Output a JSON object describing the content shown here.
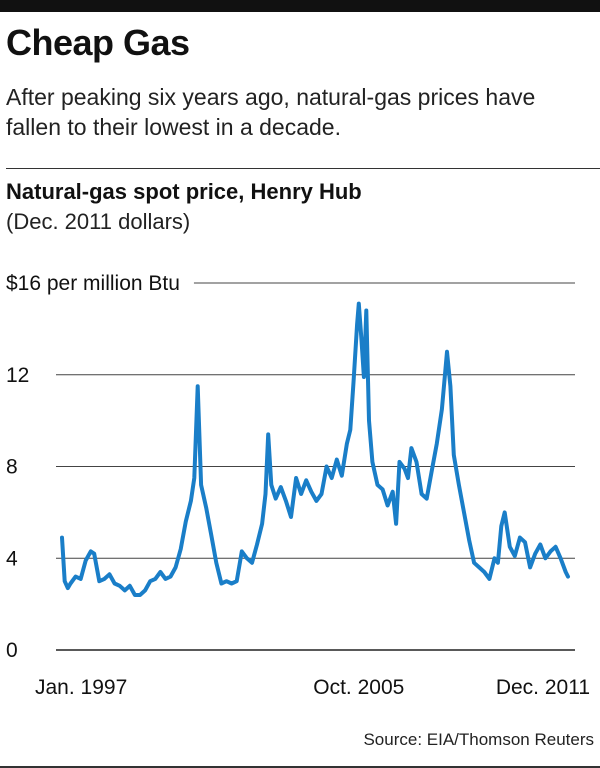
{
  "headline": "Cheap Gas",
  "dek": "After peaking six years ago, natural-gas prices have fallen to their lowest in a decade.",
  "source": "Source: EIA/Thomson Reuters",
  "colors": {
    "line": "#1a7ec8",
    "grid": "#444444",
    "text": "#111111"
  },
  "chart_data": {
    "type": "line",
    "title": "Natural-gas spot price, Henry Hub",
    "subtitle": "(Dec. 2011 dollars)",
    "ylabel": "",
    "xlabel": "",
    "ylim": [
      0,
      16
    ],
    "xlim": [
      1997.0,
      2011.917
    ],
    "y_ticks": [
      {
        "value": 0,
        "label": "0"
      },
      {
        "value": 4,
        "label": "4"
      },
      {
        "value": 8,
        "label": "8"
      },
      {
        "value": 12,
        "label": "12"
      },
      {
        "value": 16,
        "label": "$16 per million Btu"
      }
    ],
    "x_ticks": [
      {
        "value": 1997.0,
        "label": "Jan. 1997"
      },
      {
        "value": 2005.75,
        "label": "Oct. 2005"
      },
      {
        "value": 2011.917,
        "label": "Dec. 2011"
      }
    ],
    "grid": true,
    "series": [
      {
        "name": "",
        "x": [
          1997.0,
          1997.08,
          1997.17,
          1997.25,
          1997.4,
          1997.55,
          1997.7,
          1997.85,
          1997.95,
          1998.1,
          1998.25,
          1998.4,
          1998.55,
          1998.7,
          1998.85,
          1999.0,
          1999.15,
          1999.3,
          1999.45,
          1999.6,
          1999.75,
          1999.9,
          2000.05,
          2000.2,
          2000.35,
          2000.5,
          2000.65,
          2000.8,
          2000.9,
          2001.0,
          2001.1,
          2001.25,
          2001.4,
          2001.55,
          2001.7,
          2001.85,
          2002.0,
          2002.15,
          2002.3,
          2002.45,
          2002.6,
          2002.75,
          2002.9,
          2003.0,
          2003.08,
          2003.17,
          2003.3,
          2003.45,
          2003.6,
          2003.75,
          2003.9,
          2004.05,
          2004.2,
          2004.35,
          2004.5,
          2004.65,
          2004.8,
          2004.95,
          2005.1,
          2005.25,
          2005.4,
          2005.5,
          2005.6,
          2005.7,
          2005.75,
          2005.83,
          2005.9,
          2005.97,
          2006.05,
          2006.15,
          2006.3,
          2006.45,
          2006.6,
          2006.75,
          2006.85,
          2006.95,
          2007.1,
          2007.2,
          2007.3,
          2007.45,
          2007.6,
          2007.75,
          2007.9,
          2008.05,
          2008.2,
          2008.35,
          2008.45,
          2008.55,
          2008.7,
          2008.85,
          2009.0,
          2009.15,
          2009.3,
          2009.45,
          2009.6,
          2009.75,
          2009.85,
          2009.95,
          2010.05,
          2010.2,
          2010.35,
          2010.5,
          2010.65,
          2010.8,
          2010.95,
          2011.1,
          2011.25,
          2011.4,
          2011.55,
          2011.7,
          2011.85,
          2011.917
        ],
        "y": [
          4.9,
          3.0,
          2.7,
          2.9,
          3.2,
          3.1,
          3.9,
          4.3,
          4.2,
          3.0,
          3.1,
          3.3,
          2.9,
          2.8,
          2.6,
          2.8,
          2.4,
          2.4,
          2.6,
          3.0,
          3.1,
          3.4,
          3.1,
          3.2,
          3.6,
          4.4,
          5.6,
          6.5,
          7.5,
          11.5,
          7.2,
          6.2,
          5.0,
          3.8,
          2.9,
          3.0,
          2.9,
          3.0,
          4.3,
          4.0,
          3.8,
          4.6,
          5.5,
          6.8,
          9.4,
          7.2,
          6.6,
          7.1,
          6.5,
          5.8,
          7.5,
          6.8,
          7.4,
          6.9,
          6.5,
          6.8,
          8.0,
          7.5,
          8.3,
          7.6,
          9.0,
          9.6,
          11.8,
          14.2,
          15.1,
          13.5,
          11.9,
          14.8,
          10.0,
          8.2,
          7.2,
          7.0,
          6.3,
          6.9,
          5.5,
          8.2,
          7.9,
          7.5,
          8.8,
          8.2,
          6.8,
          6.6,
          7.8,
          9.0,
          10.5,
          13.0,
          11.5,
          8.5,
          7.2,
          6.0,
          4.8,
          3.8,
          3.6,
          3.4,
          3.1,
          4.0,
          3.8,
          5.4,
          6.0,
          4.5,
          4.1,
          4.9,
          4.7,
          3.6,
          4.2,
          4.6,
          4.0,
          4.3,
          4.5,
          4.0,
          3.4,
          3.2
        ]
      }
    ]
  }
}
